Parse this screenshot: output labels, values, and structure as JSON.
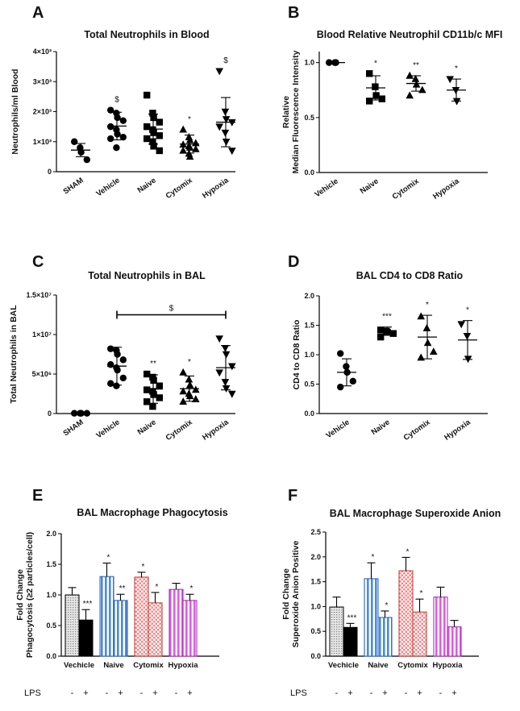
{
  "chart_data": [
    {
      "panel": "A",
      "type": "scatter",
      "title": "Total Neutrophils in Blood",
      "ylabel": "Neutrophils/ml Blood",
      "ylim": [
        0,
        4000
      ],
      "yticks": [
        0,
        1000,
        2000,
        3000,
        4000
      ],
      "ytick_labels": [
        "0",
        "1×10³",
        "2×10³",
        "3×10³",
        "4×10³"
      ],
      "categories": [
        "SHAM",
        "Vehicle",
        "Naive",
        "Cytomix",
        "Hypoxia"
      ],
      "markers": [
        "circle",
        "circle",
        "square",
        "triangle",
        "triangle-down"
      ],
      "points": [
        [
          1000,
          800,
          650,
          400
        ],
        [
          2050,
          1950,
          1800,
          1700,
          1500,
          1400,
          1250,
          1150,
          1100,
          800
        ],
        [
          2550,
          1950,
          1800,
          1650,
          1500,
          1400,
          1300,
          1200,
          1100,
          1000,
          850,
          700
        ],
        [
          1400,
          1150,
          1050,
          950,
          900,
          850,
          800,
          750,
          700,
          600,
          500
        ],
        [
          3350,
          2000,
          1750,
          1650,
          1500,
          1300,
          1000,
          700
        ]
      ],
      "mean": [
        720,
        1520,
        1420,
        920,
        1650
      ],
      "sd": [
        220,
        460,
        500,
        300,
        820
      ],
      "annotations": [
        "",
        "$",
        "",
        "*",
        "$"
      ]
    },
    {
      "panel": "B",
      "type": "scatter",
      "title": "Blood Relative Neutrophil CD11b/c MFI",
      "ylabel": [
        "Relative",
        "Median Fluorescence Intensity"
      ],
      "ylim": [
        0,
        1.1
      ],
      "yticks": [
        0,
        0.5,
        1.0
      ],
      "ytick_labels": [
        "0.0",
        "0.5",
        "1.0"
      ],
      "categories": [
        "Vehicle",
        "Naive",
        "Cytomix",
        "Hypoxia"
      ],
      "markers": [
        "circle",
        "square",
        "triangle",
        "triangle-down"
      ],
      "points": [
        [
          1.0,
          1.0,
          1.0
        ],
        [
          0.9,
          0.78,
          0.7,
          0.67,
          0.65
        ],
        [
          0.88,
          0.85,
          0.8,
          0.75,
          0.7
        ],
        [
          0.85,
          0.75,
          0.65
        ]
      ],
      "mean": [
        1.0,
        0.77,
        0.81,
        0.75
      ],
      "sd": [
        0,
        0.11,
        0.07,
        0.1
      ],
      "annotations": [
        "",
        "*",
        "**",
        "*"
      ]
    },
    {
      "panel": "C",
      "type": "scatter",
      "title": "Total Neutrophils in BAL",
      "ylabel": "Total Neutrophils in BAL",
      "ylim": [
        0,
        15000000
      ],
      "yticks": [
        0,
        5000000,
        10000000,
        15000000
      ],
      "ytick_labels": [
        "0",
        "5×10⁶",
        "1×10⁷",
        "1.5×10⁷"
      ],
      "categories": [
        "SHAM",
        "Vehicle",
        "Naive",
        "Cytomix",
        "Hypoxia"
      ],
      "markers": [
        "circle",
        "circle",
        "square",
        "triangle",
        "triangle-down"
      ],
      "points": [
        [
          30000,
          30000,
          30000,
          30000
        ],
        [
          8200000,
          8000000,
          7500000,
          6800000,
          6200000,
          5800000,
          5500000,
          4500000,
          3800000,
          3500000
        ],
        [
          5000000,
          4600000,
          4200000,
          3500000,
          3000000,
          2800000,
          2400000,
          2000000,
          1500000,
          900000
        ],
        [
          5200000,
          4300000,
          3600000,
          3000000,
          2800000,
          2500000,
          2200000,
          1800000,
          1500000
        ],
        [
          9500000,
          8300000,
          7500000,
          6000000,
          5200000,
          4000000,
          3200000,
          2500000
        ]
      ],
      "mean": [
        30000,
        6000000,
        3100000,
        3150000,
        5800000
      ],
      "sd": [
        0,
        2400000,
        1800000,
        1600000,
        2800000
      ],
      "annotations": [
        "",
        "",
        "**",
        "*",
        ""
      ],
      "bracket": {
        "from": "Vehicle",
        "to": "Hypoxia",
        "label": "$",
        "y": 12500000
      }
    },
    {
      "panel": "D",
      "type": "scatter",
      "title": "BAL CD4 to CD8 Ratio",
      "ylabel": "CD4 to CD8 Ratio",
      "ylim": [
        0,
        2.0
      ],
      "yticks": [
        0,
        0.5,
        1.0,
        1.5,
        2.0
      ],
      "ytick_labels": [
        "0.0",
        "0.5",
        "1.0",
        "1.5",
        "2.0"
      ],
      "categories": [
        "Vehicle",
        "Naive",
        "Cytomix",
        "Hypoxia"
      ],
      "markers": [
        "circle",
        "square",
        "triangle",
        "triangle-down"
      ],
      "points": [
        [
          1.02,
          0.8,
          0.7,
          0.55,
          0.45
        ],
        [
          1.42,
          1.4,
          1.38,
          1.36,
          1.3
        ],
        [
          1.65,
          1.45,
          1.2,
          1.05,
          0.95
        ],
        [
          1.52,
          1.32,
          0.93
        ]
      ],
      "mean": [
        0.7,
        1.4,
        1.3,
        1.25
      ],
      "sd": [
        0.23,
        0.07,
        0.37,
        0.33
      ],
      "annotations": [
        "",
        "***",
        "*",
        "*"
      ]
    },
    {
      "panel": "E",
      "type": "bar",
      "title": "BAL Macrophage Phagocytosis",
      "ylabel": [
        "Fold Change",
        "Phagocytosis (≥2 particles/cell)"
      ],
      "ylim": [
        0,
        2.0
      ],
      "yticks": [
        0,
        0.5,
        1.0,
        1.5,
        2.0
      ],
      "ytick_labels": [
        "0.0",
        "0.5",
        "1.0",
        "1.5",
        "2.0"
      ],
      "groups": [
        "Vechicle",
        "Naive",
        "Cytomix",
        "Hypoxia"
      ],
      "series": [
        {
          "name": "LPS -",
          "values": [
            1.0,
            1.3,
            1.29,
            1.09
          ],
          "errors": [
            0.12,
            0.22,
            0.08,
            0.1
          ]
        },
        {
          "name": "LPS +",
          "values": [
            0.59,
            0.91,
            0.87,
            0.91
          ],
          "errors": [
            0.17,
            0.1,
            0.17,
            0.1
          ]
        }
      ],
      "fill_styles": [
        [
          "dots-gray",
          "solid-black"
        ],
        [
          "stripe-blue",
          "stripe-blue"
        ],
        [
          "check-red",
          "check-red"
        ],
        [
          "stripe-magenta",
          "stripe-magenta"
        ]
      ],
      "annotations": [
        [
          "",
          "***"
        ],
        [
          "*",
          "**"
        ],
        [
          "*",
          "*"
        ],
        [
          "",
          "*"
        ]
      ],
      "lps_label": "LPS",
      "lps_signs": [
        "-",
        "+",
        "-",
        "+",
        "-",
        "+",
        "-",
        "+"
      ]
    },
    {
      "panel": "F",
      "type": "bar",
      "title": "BAL Macrophage Superoxide Anion",
      "ylabel": [
        "Fold Change",
        "Superoxide Anion Positive"
      ],
      "ylim": [
        0,
        2.5
      ],
      "yticks": [
        0,
        0.5,
        1.0,
        1.5,
        2.0,
        2.5
      ],
      "ytick_labels": [
        "0.0",
        "0.5",
        "1.0",
        "1.5",
        "2.0",
        "2.5"
      ],
      "groups": [
        "Vechicle",
        "Naive",
        "Cytomix",
        "Hypoxia"
      ],
      "series": [
        {
          "name": "LPS -",
          "values": [
            0.99,
            1.56,
            1.72,
            1.19
          ],
          "errors": [
            0.2,
            0.32,
            0.27,
            0.2
          ]
        },
        {
          "name": "LPS +",
          "values": [
            0.58,
            0.78,
            0.89,
            0.59
          ],
          "errors": [
            0.08,
            0.13,
            0.26,
            0.13
          ]
        }
      ],
      "fill_styles": [
        [
          "dots-gray",
          "solid-black"
        ],
        [
          "stripe-blue",
          "stripe-blue"
        ],
        [
          "check-red",
          "check-red"
        ],
        [
          "stripe-magenta",
          "stripe-magenta"
        ]
      ],
      "annotations": [
        [
          "",
          "***"
        ],
        [
          "*",
          "*"
        ],
        [
          "*",
          "*"
        ],
        [
          "",
          ""
        ]
      ],
      "lps_label": "LPS",
      "lps_signs": [
        "-",
        "+",
        "-",
        "+",
        "-",
        "+",
        "-",
        "+"
      ]
    }
  ]
}
